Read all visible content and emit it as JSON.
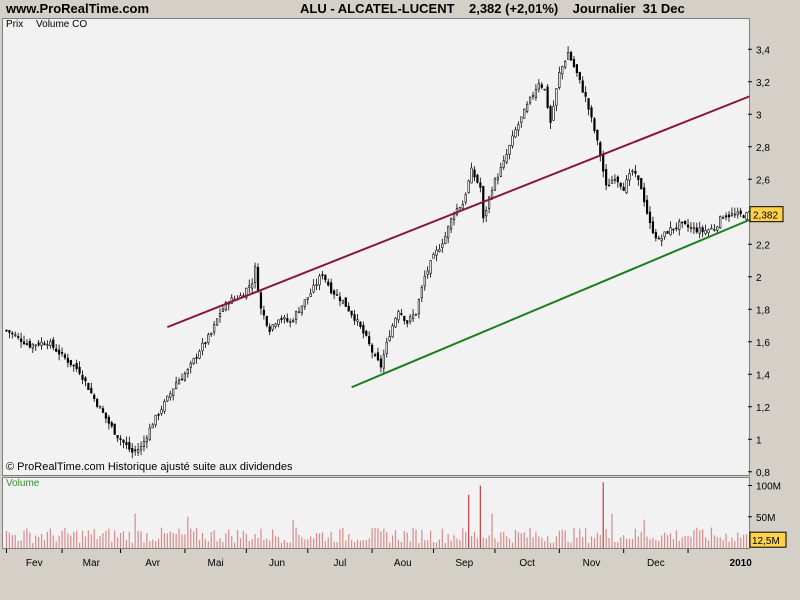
{
  "header": {
    "site": "www.ProRealTime.com",
    "title": "ALU - ALCATEL-LUCENT    2,382 (+2,01%)    Journalier  31 Dec"
  },
  "legend": {
    "price": "Prix",
    "indicator": "Volume CO"
  },
  "copyright": "© ProRealTime.com  Historique ajusté suite aux dividendes",
  "volume_label": "Volume",
  "colors": {
    "candle_up": "#ffffff",
    "candle_down": "#000000",
    "upper_trendline": "#8b1538",
    "lower_trendline": "#1e7d1e",
    "volume_bar": "#d98a8a",
    "volume_bar_highlight": "#c04040"
  },
  "chart_data": [
    {
      "type": "candlestick",
      "title": "ALU - ALCATEL-LUCENT",
      "last_price_label": "2,382",
      "y_tick_labels": [
        "3,4",
        "3,2",
        "3",
        "2,8",
        "2,6",
        "2,4",
        "2,2",
        "2",
        "1,8",
        "1,6",
        "1,4",
        "1,2",
        "1",
        "0,8"
      ],
      "y_ticks": [
        3.4,
        3.2,
        3.0,
        2.8,
        2.6,
        2.4,
        2.2,
        2.0,
        1.8,
        1.6,
        1.4,
        1.2,
        1.0,
        0.8
      ],
      "ylim": [
        0.78,
        3.58
      ],
      "x_labels": [
        "Fev",
        "Mar",
        "Avr",
        "Mai",
        "Jun",
        "Jul",
        "Aou",
        "Sep",
        "Oct",
        "Nov",
        "Dec",
        "2010"
      ],
      "close_path": [
        [
          0,
          1.67
        ],
        [
          8,
          1.58
        ],
        [
          14,
          1.6
        ],
        [
          20,
          1.5
        ],
        [
          25,
          1.42
        ],
        [
          30,
          1.25
        ],
        [
          35,
          1.1
        ],
        [
          38,
          1.02
        ],
        [
          40,
          0.98
        ],
        [
          43,
          0.92
        ],
        [
          46,
          0.95
        ],
        [
          50,
          1.1
        ],
        [
          55,
          1.25
        ],
        [
          58,
          1.35
        ],
        [
          62,
          1.42
        ],
        [
          66,
          1.55
        ],
        [
          70,
          1.65
        ],
        [
          73,
          1.78
        ],
        [
          76,
          1.85
        ],
        [
          80,
          1.88
        ],
        [
          84,
          1.97
        ],
        [
          85,
          2.05
        ],
        [
          87,
          1.8
        ],
        [
          90,
          1.68
        ],
        [
          93,
          1.75
        ],
        [
          97,
          1.72
        ],
        [
          100,
          1.8
        ],
        [
          104,
          1.9
        ],
        [
          108,
          2.02
        ],
        [
          111,
          1.92
        ],
        [
          115,
          1.85
        ],
        [
          119,
          1.75
        ],
        [
          123,
          1.62
        ],
        [
          126,
          1.5
        ],
        [
          128,
          1.45
        ],
        [
          131,
          1.65
        ],
        [
          134,
          1.8
        ],
        [
          137,
          1.72
        ],
        [
          140,
          1.78
        ],
        [
          143,
          2.0
        ],
        [
          146,
          2.12
        ],
        [
          150,
          2.25
        ],
        [
          153,
          2.4
        ],
        [
          156,
          2.45
        ],
        [
          159,
          2.65
        ],
        [
          162,
          2.55
        ],
        [
          163,
          2.35
        ],
        [
          166,
          2.55
        ],
        [
          170,
          2.7
        ],
        [
          174,
          2.9
        ],
        [
          178,
          3.05
        ],
        [
          182,
          3.2
        ],
        [
          184,
          3.15
        ],
        [
          186,
          2.95
        ],
        [
          189,
          3.25
        ],
        [
          192,
          3.38
        ],
        [
          195,
          3.25
        ],
        [
          198,
          3.1
        ],
        [
          201,
          2.9
        ],
        [
          203,
          2.75
        ],
        [
          205,
          2.55
        ],
        [
          208,
          2.62
        ],
        [
          211,
          2.55
        ],
        [
          214,
          2.65
        ],
        [
          217,
          2.55
        ],
        [
          220,
          2.32
        ],
        [
          223,
          2.22
        ],
        [
          226,
          2.28
        ],
        [
          230,
          2.32
        ],
        [
          234,
          2.3
        ],
        [
          238,
          2.28
        ],
        [
          242,
          2.3
        ],
        [
          245,
          2.38
        ]
      ],
      "upper_trendline": [
        [
          55,
          1.69
        ],
        [
          254,
          3.11
        ]
      ],
      "lower_trendline": [
        [
          118,
          1.32
        ],
        [
          254,
          2.35
        ]
      ]
    },
    {
      "type": "bar",
      "title": "Volume",
      "y_tick_labels": [
        "100M",
        "50M"
      ],
      "y_ticks": [
        100,
        50
      ],
      "ylim": [
        0,
        112
      ],
      "last_value_label": "12,5M",
      "peaks": [
        [
          44,
          55
        ],
        [
          62,
          50
        ],
        [
          98,
          45
        ],
        [
          158,
          85
        ],
        [
          162,
          100
        ],
        [
          166,
          55
        ],
        [
          204,
          105
        ],
        [
          207,
          55
        ],
        [
          218,
          45
        ],
        [
          238,
          30
        ],
        [
          245,
          12.5
        ]
      ]
    }
  ]
}
